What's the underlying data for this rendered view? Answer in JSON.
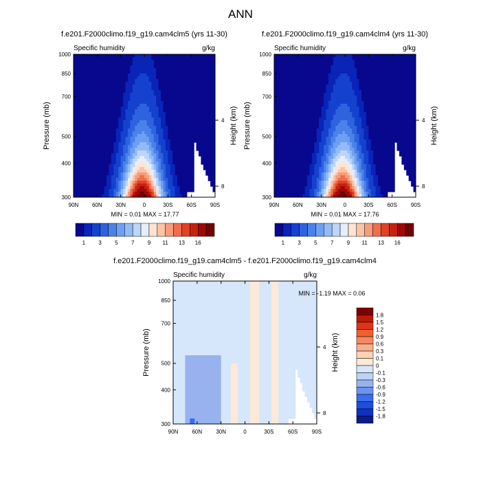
{
  "figure_title": "ANN",
  "chart_data": [
    {
      "type": "heatmap",
      "title": "f.e201.F2000climo.f19_g19.cam4clm5 (yrs 11-30)",
      "left_label": "Specific humidity",
      "right_label": "g/kg",
      "xlabel": "",
      "ylabel": "Pressure (mb)",
      "y2label": "Height (km)",
      "x_ticks": [
        "90N",
        "60N",
        "30N",
        "0",
        "30S",
        "60S",
        "90S"
      ],
      "y_ticks": [
        "300",
        "400",
        "500",
        "700",
        "850",
        "1000"
      ],
      "y2_ticks": [
        "8",
        "4"
      ],
      "xlim": [
        90,
        -90
      ],
      "ylim": [
        1000,
        300
      ],
      "min_max_text": "MIN =   0.01   MAX =  17.77",
      "colorbar_labels": [
        "1",
        "3",
        "5",
        "7",
        "9",
        "11",
        "13",
        "16"
      ],
      "colorbar_levels": [
        0.5,
        1,
        2,
        3,
        4,
        5,
        6,
        7,
        8,
        9,
        10,
        11,
        12,
        13,
        14,
        16
      ],
      "surface_max": 17.77
    },
    {
      "type": "heatmap",
      "title": "f.e201.F2000climo.f19_g19.cam4clm4 (yrs 11-30)",
      "left_label": "Specific humidity",
      "right_label": "g/kg",
      "xlabel": "",
      "ylabel": "Pressure (mb)",
      "y2label": "Height (km)",
      "x_ticks": [
        "90N",
        "60N",
        "30N",
        "0",
        "30S",
        "60S",
        "90S"
      ],
      "y_ticks": [
        "300",
        "400",
        "500",
        "700",
        "850",
        "1000"
      ],
      "y2_ticks": [
        "8",
        "4"
      ],
      "xlim": [
        90,
        -90
      ],
      "ylim": [
        1000,
        300
      ],
      "min_max_text": "MIN =   0.01   MAX =  17.76",
      "colorbar_labels": [
        "1",
        "3",
        "5",
        "7",
        "9",
        "11",
        "13",
        "16"
      ],
      "colorbar_levels": [
        0.5,
        1,
        2,
        3,
        4,
        5,
        6,
        7,
        8,
        9,
        10,
        11,
        12,
        13,
        14,
        16
      ],
      "surface_max": 17.76
    },
    {
      "type": "heatmap",
      "title": "f.e201.F2000climo.f19_g19.cam4clm5 - f.e201.F2000climo.f19_g19.cam4clm4",
      "left_label": "Specific humidity",
      "right_label": "g/kg",
      "xlabel": "",
      "ylabel": "Pressure (mb)",
      "y2label": "Height (km)",
      "x_ticks": [
        "90N",
        "60N",
        "30N",
        "0",
        "30S",
        "60S",
        "90S"
      ],
      "y_ticks": [
        "300",
        "400",
        "500",
        "700",
        "850",
        "1000"
      ],
      "y2_ticks": [
        "8",
        "4"
      ],
      "xlim": [
        90,
        -90
      ],
      "ylim": [
        1000,
        300
      ],
      "min_max_text": "MIN =  -1.19  MAX =   0.06",
      "colorbar_labels": [
        "1.8",
        "1.5",
        "1.2",
        "0.9",
        "0.6",
        "0.3",
        "0.1",
        "0",
        "-0.1",
        "-0.3",
        "-0.6",
        "-0.9",
        "-1.2",
        "-1.5",
        "-1.8"
      ],
      "colorbar_levels": [
        -1.8,
        -1.5,
        -1.2,
        -0.9,
        -0.6,
        -0.3,
        -0.1,
        0,
        0.1,
        0.3,
        0.6,
        0.9,
        1.2,
        1.5,
        1.8
      ]
    }
  ],
  "colors": {
    "abs_scale": [
      "#08088f",
      "#0a24b8",
      "#1442cf",
      "#2e62de",
      "#4a82ea",
      "#6d9ff2",
      "#93bbf7",
      "#bcd6fb",
      "#e6eefc",
      "#ffe4d2",
      "#fcc3a6",
      "#f79c79",
      "#f06e4c",
      "#e04228",
      "#c4240f",
      "#a00808",
      "#730202"
    ],
    "diff_scale": [
      "#0c1a8a",
      "#0f32c2",
      "#1c4ee0",
      "#3a6ef0",
      "#6c93f0",
      "#97b2ef",
      "#bfd2f6",
      "#d6e6fb",
      "#fce9d7",
      "#fbd3b8",
      "#f8b08b",
      "#f58861",
      "#f0602e",
      "#e0341a",
      "#bc1a08",
      "#800000"
    ]
  }
}
